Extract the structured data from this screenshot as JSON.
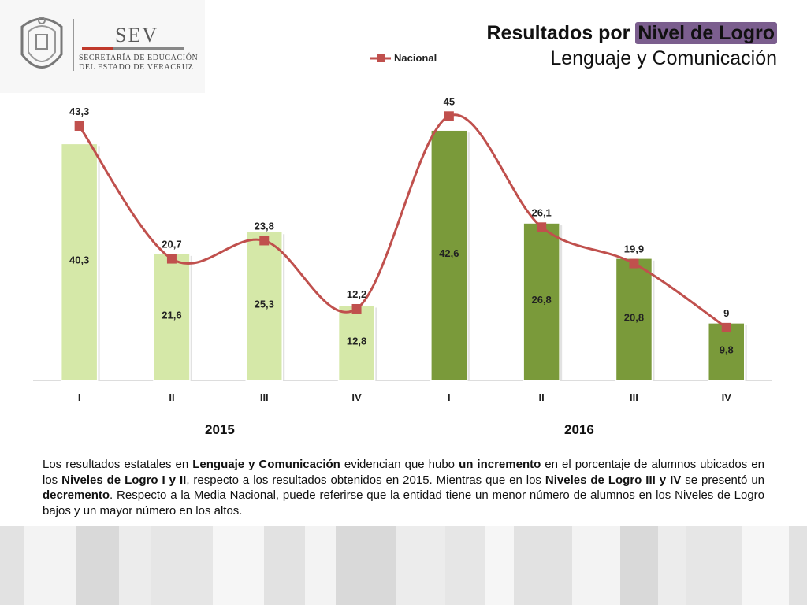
{
  "header": {
    "logo_name": "SEV",
    "logo_line1": "SECRETARÍA DE EDUCACIÓN",
    "logo_line2": "DEL ESTADO DE VERACRUZ",
    "title_part1": "Resultados por ",
    "title_highlight": "Nivel de Logro",
    "subtitle": "Lenguaje y Comunicación"
  },
  "legend": {
    "series_label": "Nacional"
  },
  "chart_data": {
    "type": "bar",
    "categories": [
      "I",
      "II",
      "III",
      "IV",
      "I",
      "II",
      "III",
      "IV"
    ],
    "groups": [
      {
        "label": "2015",
        "categories": [
          "I",
          "II",
          "III",
          "IV"
        ]
      },
      {
        "label": "2016",
        "categories": [
          "I",
          "II",
          "III",
          "IV"
        ]
      }
    ],
    "series": [
      {
        "type": "bar",
        "values": [
          40.3,
          21.6,
          25.3,
          12.8,
          42.6,
          26.8,
          20.8,
          9.8
        ],
        "labels": [
          "40,3",
          "21,6",
          "25,3",
          "12,8",
          "42,6",
          "26,8",
          "20,8",
          "9,8"
        ],
        "colors": [
          "#d5e8a8",
          "#d5e8a8",
          "#d5e8a8",
          "#d5e8a8",
          "#7a9a3a",
          "#7a9a3a",
          "#7a9a3a",
          "#7a9a3a"
        ]
      },
      {
        "type": "line",
        "name": "Nacional",
        "values": [
          43.3,
          20.7,
          23.8,
          12.2,
          45,
          26.1,
          19.9,
          9
        ],
        "labels": [
          "43,3",
          "20,7",
          "23,8",
          "12,2",
          "45",
          "26,1",
          "19,9",
          "9"
        ],
        "color": "#c0504d"
      }
    ],
    "ylim": [
      0,
      50
    ],
    "grid": false,
    "legend_position": "top"
  },
  "note": [
    {
      "text": "Los resultados estatales en ",
      "bold": false
    },
    {
      "text": "Lenguaje y Comunicación",
      "bold": true
    },
    {
      "text": " evidencian que hubo ",
      "bold": false
    },
    {
      "text": "un incremento",
      "bold": true
    },
    {
      "text": " en el porcentaje de alumnos ubicados en los ",
      "bold": false
    },
    {
      "text": "Niveles de Logro I y II",
      "bold": true
    },
    {
      "text": ", respecto a los resultados obtenidos en 2015. Mientras que en los ",
      "bold": false
    },
    {
      "text": "Niveles de Logro III y IV",
      "bold": true
    },
    {
      "text": " se presentó un ",
      "bold": false
    },
    {
      "text": "decremento",
      "bold": true
    },
    {
      "text": ". Respecto a la Media Nacional, puede referirse que la entidad tiene un menor número de alumnos en los Niveles de Logro bajos y un mayor número en los altos.",
      "bold": false
    }
  ],
  "colors": {
    "bar_2015": "#d5e8a8",
    "bar_2016": "#7a9a3a",
    "national_line": "#c0504d"
  }
}
